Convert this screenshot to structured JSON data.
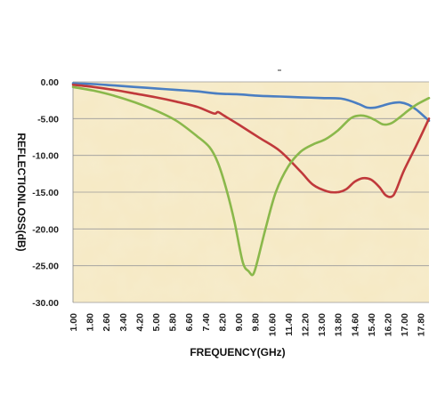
{
  "chart_data": {
    "type": "line",
    "title": "",
    "xlabel": "FREQUENCY(GHz)",
    "ylabel": "REFLECTIONLOSS(dB)",
    "xlim": [
      1.0,
      18.2
    ],
    "ylim": [
      -30,
      0
    ],
    "y_ticks": [
      "0.00",
      "-5.00",
      "-10.00",
      "-15.00",
      "-20.00",
      "-25.00",
      "-30.00"
    ],
    "y_tick_values": [
      0,
      -5,
      -10,
      -15,
      -20,
      -25,
      -30
    ],
    "x_ticks": [
      "1.00",
      "1.80",
      "2.60",
      "3.40",
      "4.20",
      "5.00",
      "5.80",
      "6.60",
      "7.40",
      "8.20",
      "9.00",
      "9.80",
      "10.60",
      "11.40",
      "12.20",
      "13.00",
      "13.80",
      "14.60",
      "15.40",
      "16.20",
      "17.00",
      "17.80"
    ],
    "x_tick_values": [
      1.0,
      1.8,
      2.6,
      3.4,
      4.2,
      5.0,
      5.8,
      6.6,
      7.4,
      8.2,
      9.0,
      9.8,
      10.6,
      11.4,
      12.2,
      13.0,
      13.8,
      14.6,
      15.4,
      16.2,
      17.0,
      17.8
    ],
    "grid": "horizontal",
    "background": "#f6e9c3",
    "series": [
      {
        "color": "#4a7ec2",
        "x": [
          1.0,
          2.0,
          3.0,
          4.0,
          5.0,
          6.0,
          7.0,
          8.0,
          9.0,
          10.0,
          11.0,
          12.0,
          13.0,
          14.0,
          14.8,
          15.2,
          15.6,
          16.0,
          16.4,
          16.8,
          17.2,
          17.6,
          18.2
        ],
        "y": [
          -0.2,
          -0.3,
          -0.5,
          -0.7,
          -0.9,
          -1.1,
          -1.3,
          -1.6,
          -1.7,
          -1.9,
          -2.0,
          -2.1,
          -2.2,
          -2.3,
          -3.0,
          -3.5,
          -3.5,
          -3.2,
          -2.9,
          -2.8,
          -3.1,
          -3.8,
          -5.3
        ]
      },
      {
        "color": "#c0393b",
        "x": [
          1.0,
          2.0,
          3.0,
          4.0,
          5.0,
          6.0,
          7.0,
          7.8,
          8.0,
          8.3,
          9.0,
          10.0,
          11.0,
          12.0,
          12.6,
          13.3,
          13.8,
          14.2,
          14.6,
          15.0,
          15.4,
          15.8,
          16.1,
          16.4,
          16.6,
          17.0,
          17.6,
          18.2
        ],
        "y": [
          -0.4,
          -0.7,
          -1.1,
          -1.6,
          -2.1,
          -2.7,
          -3.4,
          -4.3,
          -4.1,
          -4.6,
          -5.8,
          -7.6,
          -9.4,
          -12.2,
          -14.0,
          -14.9,
          -15.0,
          -14.6,
          -13.6,
          -13.1,
          -13.3,
          -14.3,
          -15.4,
          -15.6,
          -14.8,
          -12.0,
          -8.6,
          -5.0
        ]
      },
      {
        "color": "#8ab84b",
        "x": [
          1.0,
          2.0,
          3.0,
          4.0,
          5.0,
          6.0,
          7.0,
          7.6,
          8.0,
          8.4,
          8.8,
          9.2,
          9.5,
          9.7,
          9.9,
          10.3,
          10.8,
          11.4,
          12.0,
          12.6,
          13.2,
          13.8,
          14.4,
          14.8,
          15.2,
          15.6,
          16.0,
          16.4,
          16.8,
          17.2,
          17.6,
          18.2
        ],
        "y": [
          -0.7,
          -1.2,
          -1.9,
          -2.8,
          -3.9,
          -5.3,
          -7.4,
          -8.9,
          -11.0,
          -14.5,
          -19.0,
          -24.5,
          -25.8,
          -26.2,
          -24.5,
          -20.0,
          -15.0,
          -11.5,
          -9.5,
          -8.5,
          -7.8,
          -6.6,
          -5.0,
          -4.6,
          -4.7,
          -5.2,
          -5.8,
          -5.6,
          -4.8,
          -3.9,
          -3.1,
          -2.2
        ]
      }
    ]
  }
}
